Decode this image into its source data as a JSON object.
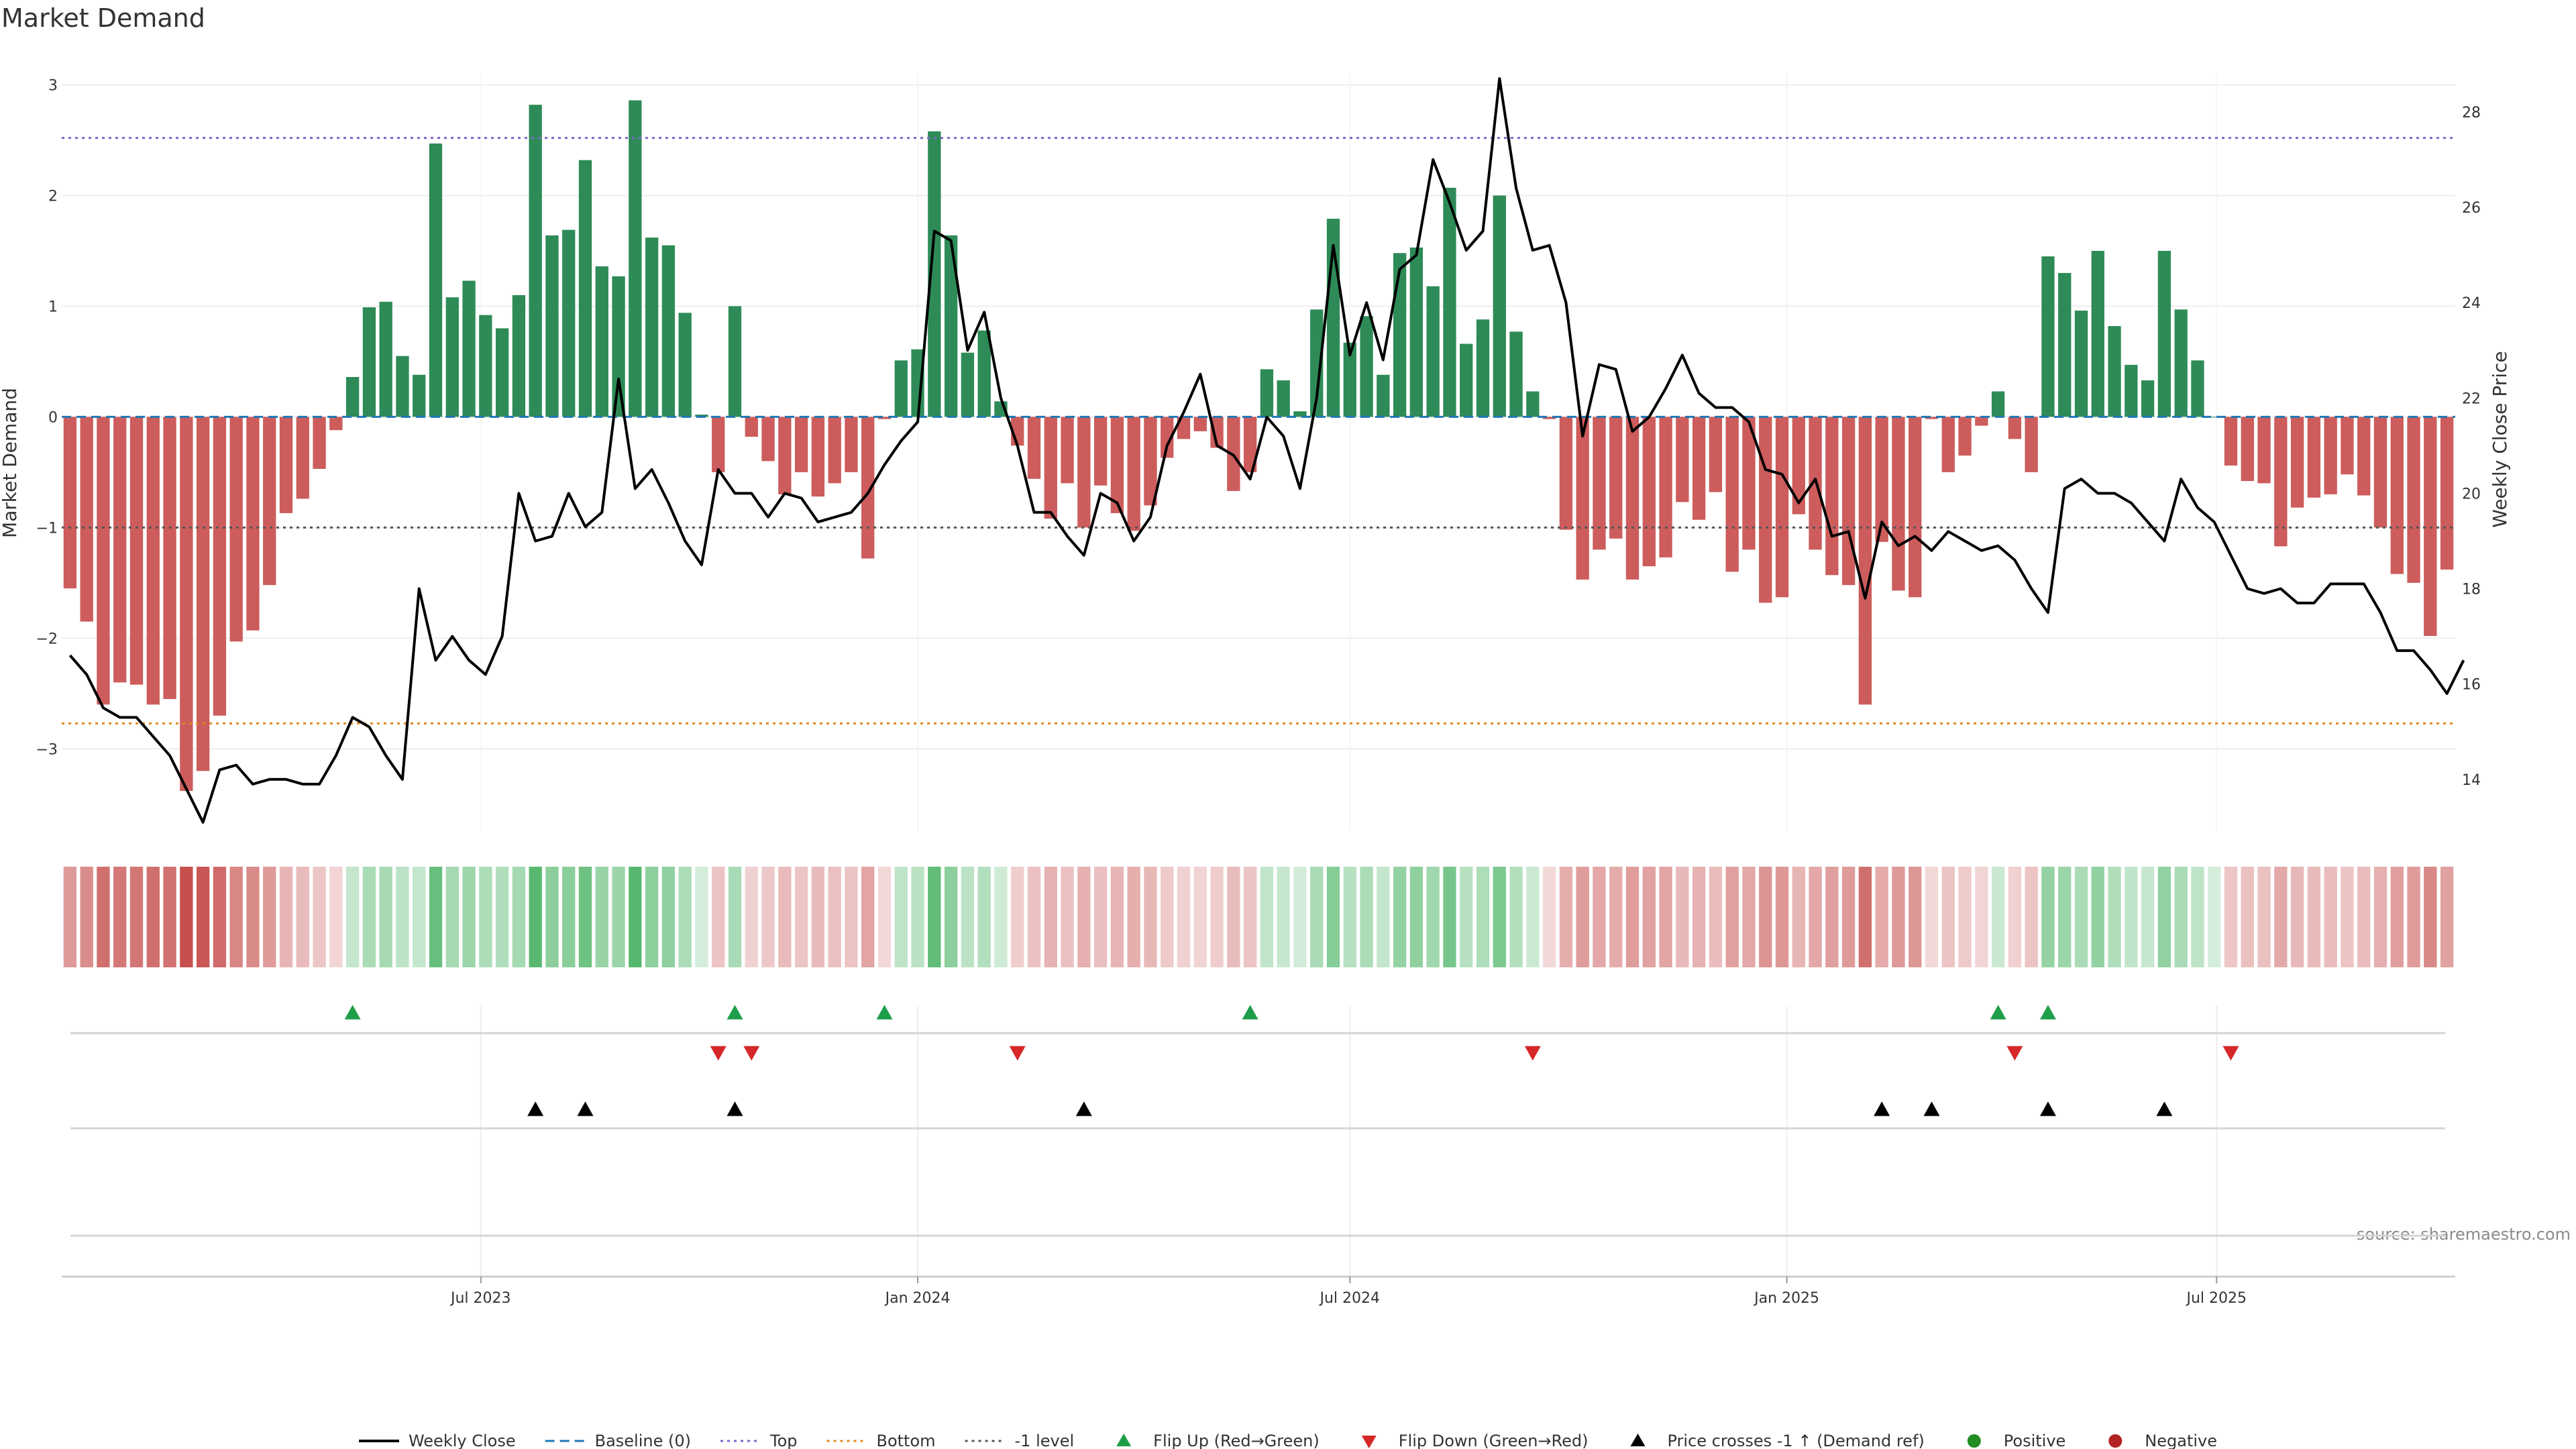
{
  "chart_data": {
    "type": "bar",
    "title": "Market Demand",
    "ylabel": "Market Demand",
    "y2label": "Weekly Close Price",
    "ylim": [
      -3.75,
      3.1
    ],
    "y2lim": [
      12.9,
      28.8
    ],
    "yticks": [
      -3,
      -2,
      -1,
      0,
      1,
      2,
      3
    ],
    "y2ticks": [
      14,
      16,
      18,
      20,
      22,
      24,
      26,
      28
    ],
    "x_start": "2023-01-09",
    "x_step_days": 7,
    "x_ticks": [
      {
        "date": "2023-07-01",
        "label": "Jul 2023"
      },
      {
        "date": "2024-01-01",
        "label": "Jan 2024"
      },
      {
        "date": "2024-07-01",
        "label": "Jul 2024"
      },
      {
        "date": "2025-01-01",
        "label": "Jan 2025"
      },
      {
        "date": "2025-07-01",
        "label": "Jul 2025"
      }
    ],
    "reference_lines": {
      "top": 2.52,
      "bottom": -2.77,
      "minus_one": -1,
      "baseline": 0
    },
    "demand": [
      -1.55,
      -1.85,
      -2.6,
      -2.4,
      -2.42,
      -2.6,
      -2.55,
      -3.38,
      -3.2,
      -2.7,
      -2.03,
      -1.93,
      -1.52,
      -0.87,
      -0.74,
      -0.47,
      -0.12,
      0.36,
      0.99,
      1.04,
      0.55,
      0.38,
      2.47,
      1.08,
      1.23,
      0.92,
      0.8,
      1.1,
      2.82,
      1.64,
      1.69,
      2.32,
      1.36,
      1.27,
      2.86,
      1.62,
      1.55,
      0.94,
      0.02,
      -0.5,
      1.0,
      -0.18,
      -0.4,
      -0.7,
      -0.5,
      -0.72,
      -0.6,
      -0.5,
      -1.28,
      -0.02,
      0.51,
      0.61,
      2.58,
      1.64,
      0.58,
      0.78,
      0.14,
      -0.26,
      -0.56,
      -0.92,
      -0.6,
      -1.0,
      -0.62,
      -0.87,
      -1.03,
      -0.8,
      -0.37,
      -0.2,
      -0.13,
      -0.28,
      -0.67,
      -0.5,
      0.43,
      0.33,
      0.05,
      0.97,
      1.79,
      0.67,
      0.91,
      0.38,
      1.48,
      1.53,
      1.18,
      2.07,
      0.66,
      0.88,
      2.0,
      0.77,
      0.23,
      -0.02,
      -1.02,
      -1.47,
      -1.2,
      -1.1,
      -1.47,
      -1.35,
      -1.27,
      -0.77,
      -0.93,
      -0.68,
      -1.4,
      -1.2,
      -1.68,
      -1.63,
      -0.88,
      -1.2,
      -1.43,
      -1.52,
      -2.6,
      -1.13,
      -1.57,
      -1.63,
      -0.02,
      -0.5,
      -0.35,
      -0.08,
      0.23,
      -0.2,
      -0.5,
      1.45,
      1.3,
      0.96,
      1.5,
      0.82,
      0.47,
      0.33,
      1.5,
      0.97,
      0.51,
      0.0,
      -0.44,
      -0.58,
      -0.6,
      -1.17,
      -0.82,
      -0.73,
      -0.7,
      -0.52,
      -0.71,
      -1.0,
      -1.42,
      -1.5,
      -1.98,
      -1.38
    ],
    "price": [
      16.6,
      16.2,
      15.5,
      15.3,
      15.3,
      14.9,
      14.5,
      13.8,
      13.1,
      14.2,
      14.3,
      13.9,
      14.0,
      14.0,
      13.9,
      13.9,
      14.5,
      15.3,
      15.1,
      14.5,
      14.0,
      18.0,
      16.5,
      17.0,
      16.5,
      16.2,
      17.0,
      20.0,
      19.0,
      19.1,
      20.0,
      19.3,
      19.6,
      22.4,
      20.1,
      20.5,
      19.8,
      19.0,
      18.5,
      20.5,
      20.0,
      20.0,
      19.5,
      20.0,
      19.9,
      19.4,
      19.5,
      19.6,
      20.0,
      20.6,
      21.1,
      21.5,
      25.5,
      25.3,
      23.0,
      23.8,
      22.0,
      21.0,
      19.6,
      19.6,
      19.1,
      18.7,
      20.0,
      19.8,
      19.0,
      19.5,
      21.0,
      21.7,
      22.5,
      21.0,
      20.8,
      20.3,
      21.6,
      21.2,
      20.1,
      22.0,
      25.2,
      22.9,
      24.0,
      22.8,
      24.7,
      25.0,
      27.0,
      26.1,
      25.1,
      25.5,
      28.7,
      26.4,
      25.1,
      25.2,
      24.0,
      21.2,
      22.7,
      22.6,
      21.3,
      21.6,
      22.2,
      22.9,
      22.1,
      21.8,
      21.8,
      21.5,
      20.5,
      20.4,
      19.8,
      20.3,
      19.1,
      19.2,
      17.8,
      19.4,
      18.9,
      19.1,
      18.8,
      19.2,
      19.0,
      18.8,
      18.9,
      18.6,
      18.0,
      17.5,
      20.1,
      20.3,
      20.0,
      20.0,
      19.8,
      19.4,
      19.0,
      20.3,
      19.7,
      19.4,
      18.7,
      18.0,
      17.9,
      18.0,
      17.7,
      17.7,
      18.1,
      18.1,
      18.1,
      17.5,
      16.7,
      16.7,
      16.3,
      15.8,
      16.5
    ],
    "flip_up": [
      17,
      40,
      49,
      71,
      116,
      119
    ],
    "flip_down": [
      39,
      41,
      57,
      88,
      117,
      130
    ],
    "price_cross": [
      28,
      31,
      40,
      61,
      109,
      112,
      119,
      126
    ],
    "legend": [
      {
        "key": "close",
        "label": "Weekly Close"
      },
      {
        "key": "baseline",
        "label": "Baseline (0)"
      },
      {
        "key": "top",
        "label": "Top"
      },
      {
        "key": "bottom",
        "label": "Bottom"
      },
      {
        "key": "minus1",
        "label": "-1 level"
      },
      {
        "key": "flipup",
        "label": "Flip Up (Red→Green)"
      },
      {
        "key": "flipdown",
        "label": "Flip Down (Green→Red)"
      },
      {
        "key": "cross",
        "label": "Price crosses -1 ↑ (Demand ref)"
      },
      {
        "key": "positive",
        "label": "Positive"
      },
      {
        "key": "negative",
        "label": "Negative"
      }
    ],
    "source": "source: sharemaestro.com",
    "colors": {
      "positive": "#2e8b57",
      "negative": "#cd5c5c",
      "price": "#000000",
      "baseline": "#1f77b4",
      "top": "#7b68cc",
      "bottom": "#e08a1e",
      "minus_one": "#555555",
      "flip_up": "#1f9e4a",
      "flip_down": "#d62728",
      "cross": "#000000",
      "positive_dot": "#228b22",
      "negative_dot": "#b22222"
    }
  }
}
